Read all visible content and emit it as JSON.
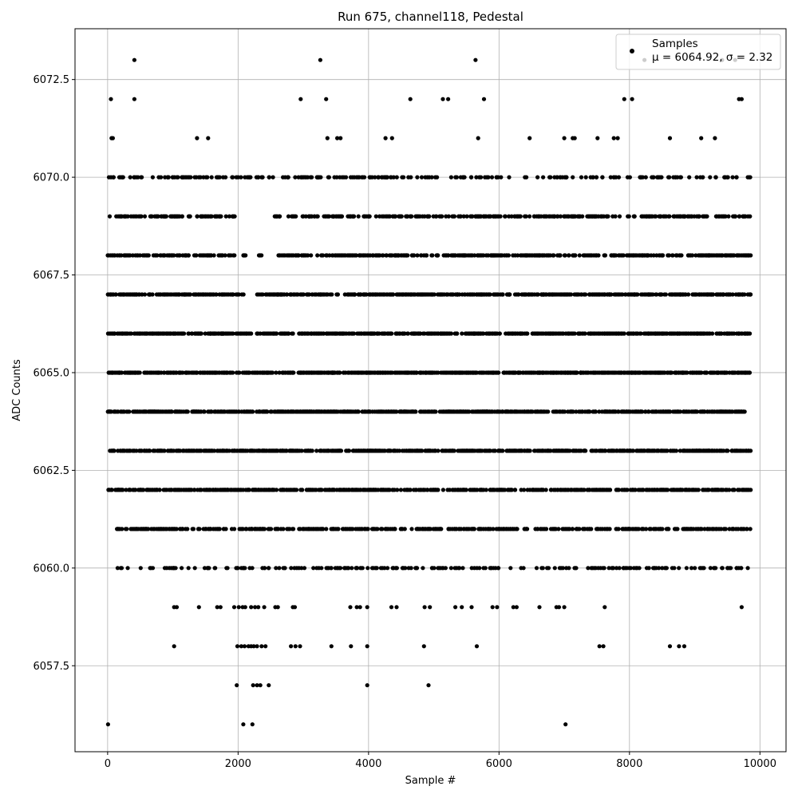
{
  "chart_data": {
    "type": "scatter",
    "title": "Run 675, channel118, Pedestal",
    "xlabel": "Sample #",
    "ylabel": "ADC Counts",
    "xlim": [
      -500,
      10400
    ],
    "ylim": [
      6055.3,
      6073.8
    ],
    "xticks": [
      0,
      2000,
      4000,
      6000,
      8000,
      10000
    ],
    "xtick_labels": [
      "0",
      "2000",
      "4000",
      "6000",
      "8000",
      "10000"
    ],
    "yticks": [
      6057.5,
      6060.0,
      6062.5,
      6065.0,
      6067.5,
      6070.0,
      6072.5
    ],
    "ytick_labels": [
      "6057.5",
      "6060.0",
      "6062.5",
      "6065.0",
      "6067.5",
      "6070.0",
      "6072.5"
    ],
    "grid": true,
    "legend": {
      "placement": "top-right",
      "entry_label": "Samples",
      "stats_label": "μ = 6064.92, σ = 2.32"
    },
    "marker_color": "#000000",
    "series": [
      {
        "name": "Samples",
        "points": [
          [
            410,
            6073
          ],
          [
            3260,
            6073
          ],
          [
            5640,
            6073
          ],
          [
            8230,
            6073
          ],
          [
            9420,
            6073
          ],
          [
            9620,
            6073
          ],
          [
            50,
            6072
          ],
          [
            410,
            6072
          ],
          [
            2960,
            6072
          ],
          [
            3350,
            6072
          ],
          [
            4640,
            6072
          ],
          [
            5140,
            6072
          ],
          [
            5220,
            6072
          ],
          [
            5770,
            6072
          ],
          [
            7920,
            6072
          ],
          [
            8040,
            6072
          ],
          [
            9680,
            6072
          ],
          [
            9720,
            6072
          ],
          [
            60,
            6071
          ],
          [
            80,
            6071
          ],
          [
            1370,
            6071
          ],
          [
            1540,
            6071
          ],
          [
            3370,
            6071
          ],
          [
            3520,
            6071
          ],
          [
            3570,
            6071
          ],
          [
            4260,
            6071
          ],
          [
            4360,
            6071
          ],
          [
            5680,
            6071
          ],
          [
            6470,
            6071
          ],
          [
            7000,
            6071
          ],
          [
            7130,
            6071
          ],
          [
            7160,
            6071
          ],
          [
            7510,
            6071
          ],
          [
            7760,
            6071
          ],
          [
            7820,
            6071
          ],
          [
            8620,
            6071
          ],
          [
            9100,
            6071
          ],
          [
            9310,
            6071
          ],
          [
            6,
            6056
          ],
          [
            2080,
            6056
          ],
          [
            2220,
            6056
          ],
          [
            7020,
            6056
          ],
          [
            1980,
            6057
          ],
          [
            2230,
            6057
          ],
          [
            2290,
            6057
          ],
          [
            2340,
            6057
          ],
          [
            2470,
            6057
          ],
          [
            3980,
            6057
          ],
          [
            4920,
            6057
          ],
          [
            1020,
            6058
          ],
          [
            1990,
            6058
          ],
          [
            2050,
            6058
          ],
          [
            2100,
            6058
          ],
          [
            2160,
            6058
          ],
          [
            2200,
            6058
          ],
          [
            2240,
            6058
          ],
          [
            2290,
            6058
          ],
          [
            2360,
            6058
          ],
          [
            2420,
            6058
          ],
          [
            2810,
            6058
          ],
          [
            2880,
            6058
          ],
          [
            2950,
            6058
          ],
          [
            3430,
            6058
          ],
          [
            3730,
            6058
          ],
          [
            3980,
            6058
          ],
          [
            4850,
            6058
          ],
          [
            5660,
            6058
          ],
          [
            7540,
            6058
          ],
          [
            7600,
            6058
          ],
          [
            8620,
            6058
          ],
          [
            8760,
            6058
          ],
          [
            8840,
            6058
          ],
          [
            1020,
            6059
          ],
          [
            1060,
            6059
          ],
          [
            1400,
            6059
          ],
          [
            1680,
            6059
          ],
          [
            1730,
            6059
          ],
          [
            1940,
            6059
          ],
          [
            2010,
            6059
          ],
          [
            2070,
            6059
          ],
          [
            2110,
            6059
          ],
          [
            2200,
            6059
          ],
          [
            2260,
            6059
          ],
          [
            2310,
            6059
          ],
          [
            2400,
            6059
          ],
          [
            2570,
            6059
          ],
          [
            2610,
            6059
          ],
          [
            2840,
            6059
          ],
          [
            2870,
            6059
          ],
          [
            3720,
            6059
          ],
          [
            3820,
            6059
          ],
          [
            3870,
            6059
          ],
          [
            3980,
            6059
          ],
          [
            4350,
            6059
          ],
          [
            4430,
            6059
          ],
          [
            4860,
            6059
          ],
          [
            4940,
            6059
          ],
          [
            5330,
            6059
          ],
          [
            5430,
            6059
          ],
          [
            5580,
            6059
          ],
          [
            5900,
            6059
          ],
          [
            5970,
            6059
          ],
          [
            6220,
            6059
          ],
          [
            6270,
            6059
          ],
          [
            6620,
            6059
          ],
          [
            6880,
            6059
          ],
          [
            6920,
            6059
          ],
          [
            7000,
            6059
          ],
          [
            7620,
            6059
          ],
          [
            9720,
            6059
          ]
        ]
      }
    ]
  }
}
